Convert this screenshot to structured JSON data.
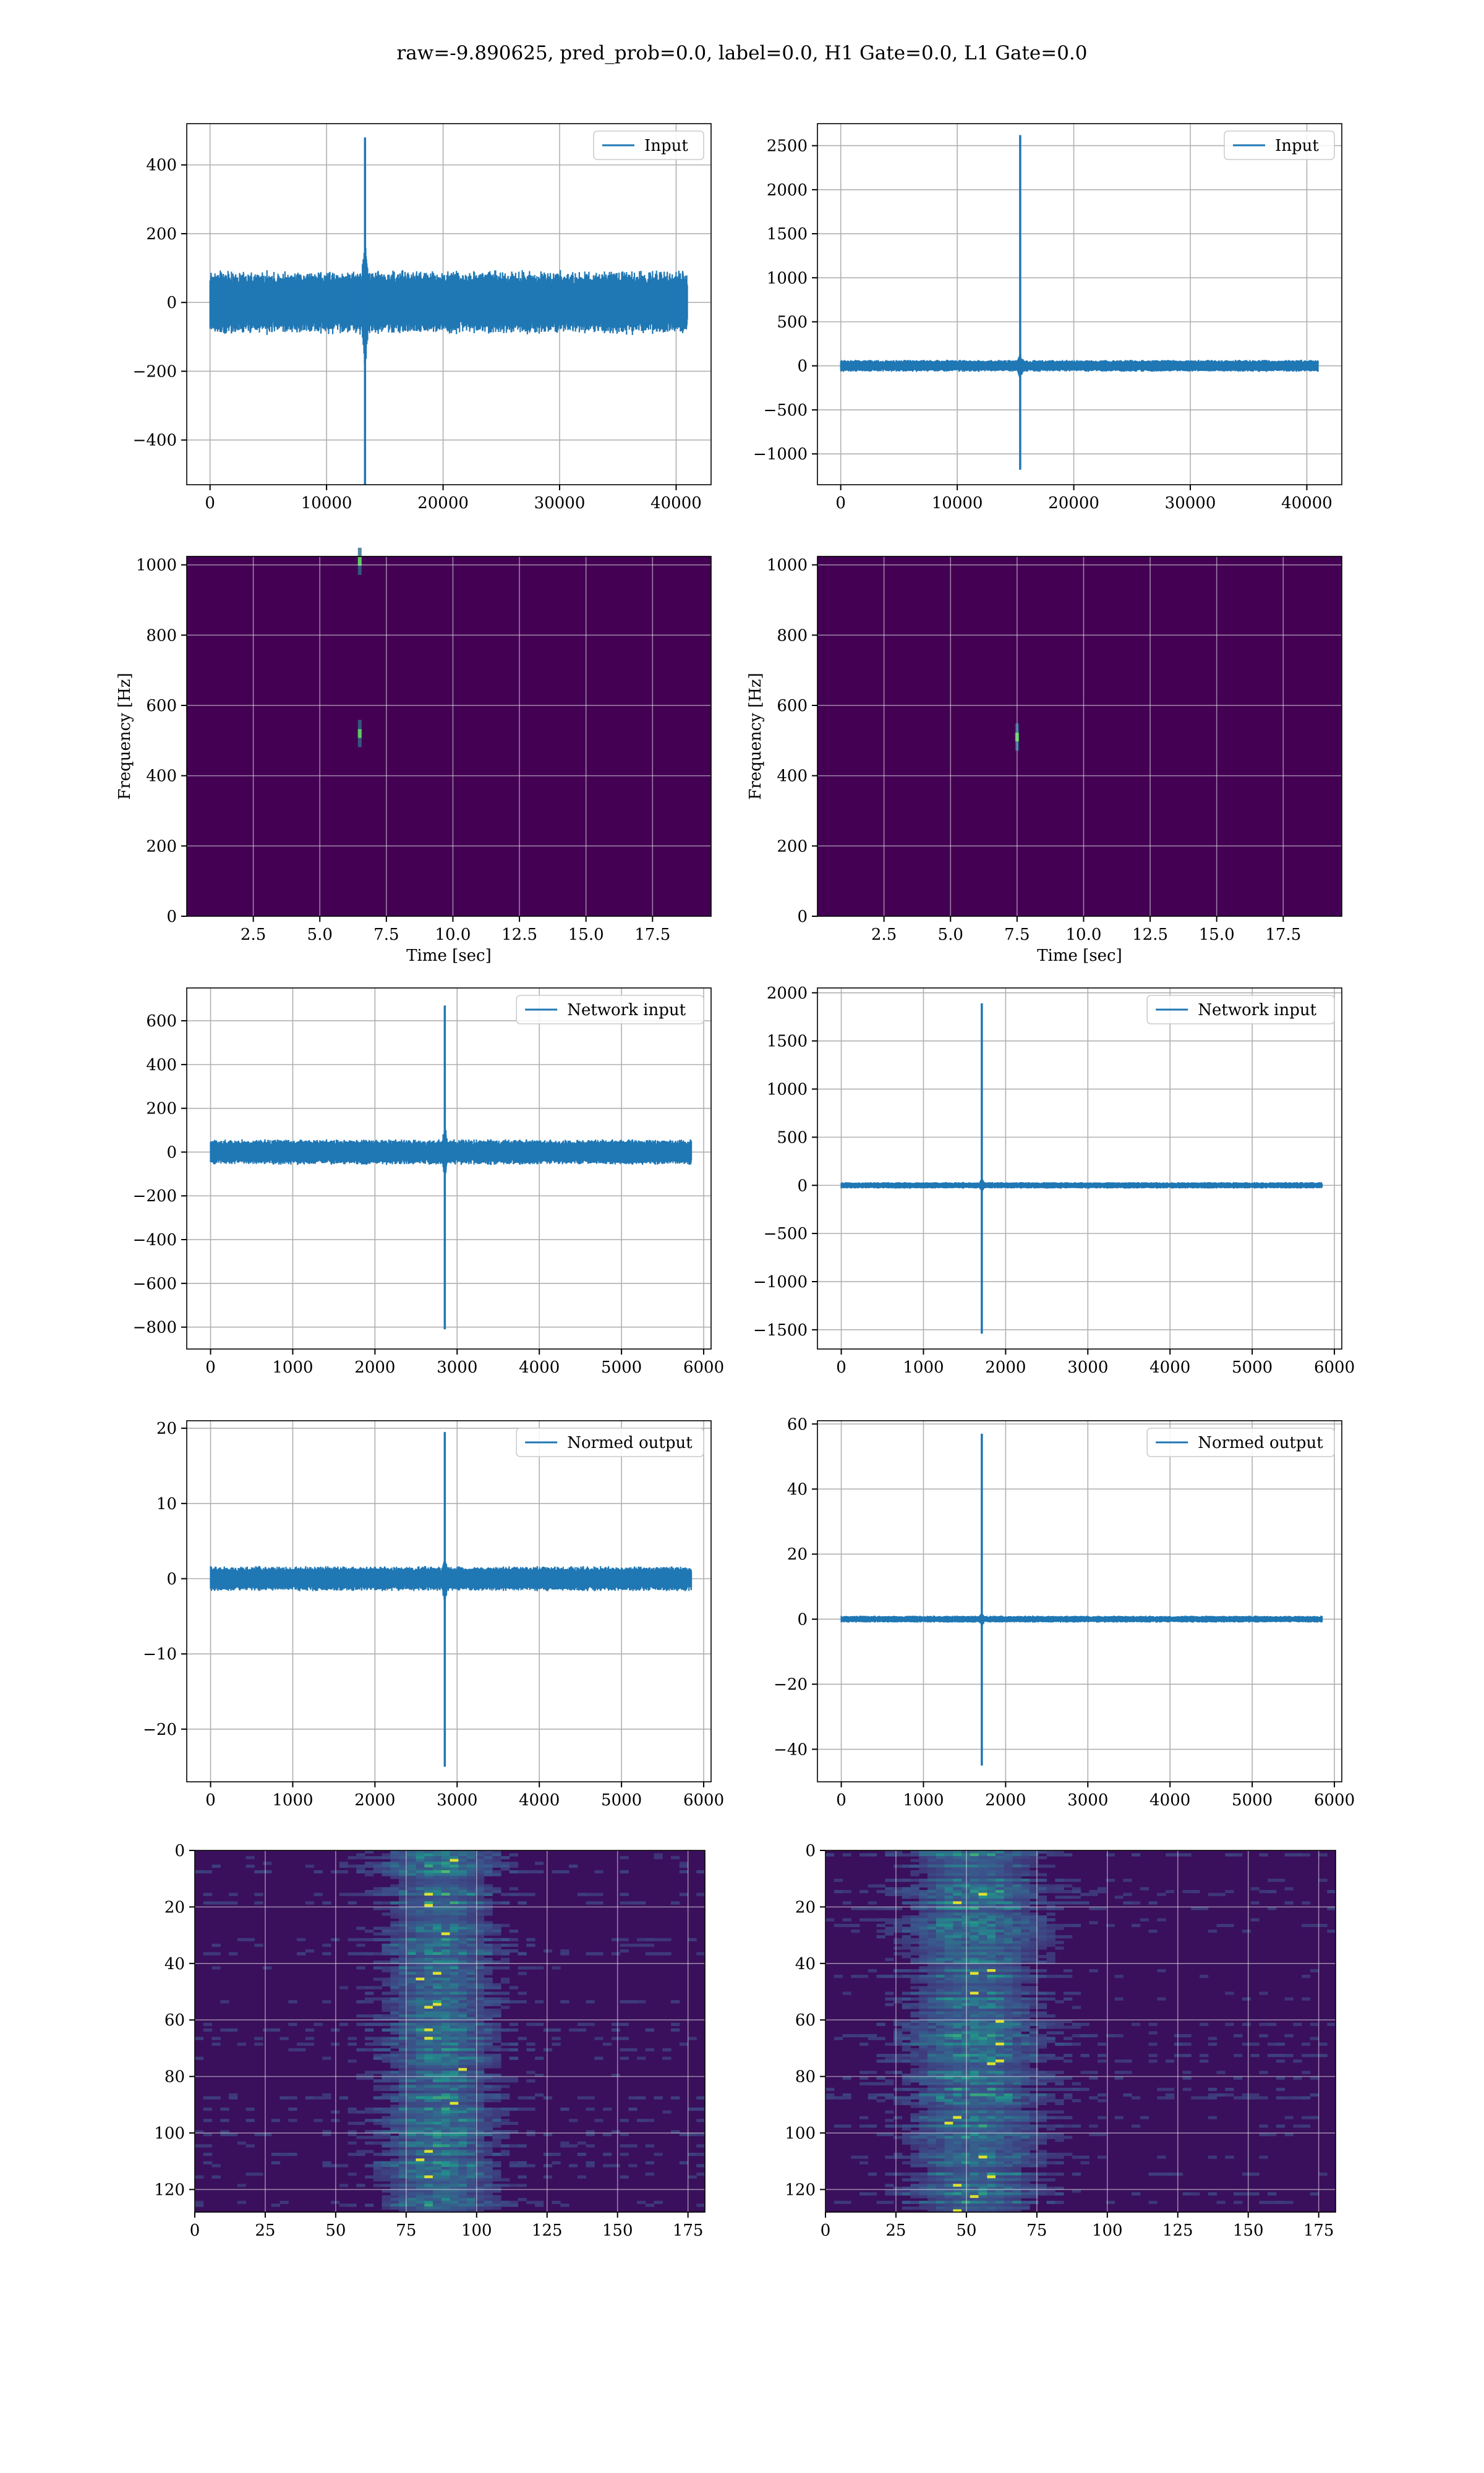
{
  "figure": {
    "suptitle": "raw=-9.890625, pred_prob=0.0, label=0.0, H1 Gate=0.0, L1 Gate=0.0"
  },
  "colors": {
    "signal": "#1f77b4",
    "grid": "#b0b0b0",
    "viridis_low": "#440154",
    "viridis_mid": "#21918c",
    "viridis_high": "#fde725"
  },
  "chart_data": [
    {
      "id": "input-h1",
      "type": "line",
      "legend": "Input",
      "xlim": [
        -2000,
        43000
      ],
      "ylim": [
        -530,
        520
      ],
      "xticks": [
        0,
        10000,
        20000,
        30000,
        40000
      ],
      "yticks": [
        -400,
        -200,
        0,
        200,
        400
      ],
      "x_range": [
        0,
        40960
      ],
      "noise_band": 95,
      "spike_x": 13300,
      "spike_max": 480,
      "spike_min": -530,
      "spike_width": 300,
      "legend_loc": "upper right",
      "grid": true
    },
    {
      "id": "input-l1",
      "type": "line",
      "legend": "Input",
      "xlim": [
        -2000,
        43000
      ],
      "ylim": [
        -1350,
        2750
      ],
      "xticks": [
        0,
        10000,
        20000,
        30000,
        40000
      ],
      "yticks": [
        -1000,
        -500,
        0,
        500,
        1000,
        1500,
        2000,
        2500
      ],
      "x_range": [
        0,
        40960
      ],
      "noise_band": 70,
      "spike_x": 15400,
      "spike_max": 2620,
      "spike_min": -1180,
      "spike_width": 300,
      "legend_loc": "upper right",
      "grid": true
    },
    {
      "id": "spectrogram-h1",
      "type": "heatmap",
      "xlabel": "Time [sec]",
      "ylabel": "Frequency [Hz]",
      "xlim": [
        0,
        19.7
      ],
      "ylim": [
        0,
        1024
      ],
      "xticks": [
        2.5,
        5.0,
        7.5,
        10.0,
        12.5,
        15.0,
        17.5
      ],
      "xticklabels": [
        "2.5",
        "5.0",
        "7.5",
        "10.0",
        "12.5",
        "15.0",
        "17.5"
      ],
      "yticks": [
        0,
        200,
        400,
        600,
        800,
        1000
      ],
      "hotspots": [
        {
          "t": 6.5,
          "f": 1010
        },
        {
          "t": 6.5,
          "f": 520
        }
      ],
      "grid": true
    },
    {
      "id": "spectrogram-l1",
      "type": "heatmap",
      "xlabel": "Time [sec]",
      "ylabel": "Frequency [Hz]",
      "xlim": [
        0,
        19.7
      ],
      "ylim": [
        0,
        1024
      ],
      "xticks": [
        2.5,
        5.0,
        7.5,
        10.0,
        12.5,
        15.0,
        17.5
      ],
      "xticklabels": [
        "2.5",
        "5.0",
        "7.5",
        "10.0",
        "12.5",
        "15.0",
        "17.5"
      ],
      "yticks": [
        0,
        200,
        400,
        600,
        800,
        1000
      ],
      "hotspots": [
        {
          "t": 7.5,
          "f": 510
        }
      ],
      "grid": true
    },
    {
      "id": "network-input-h1",
      "type": "line",
      "legend": "Network input",
      "xlim": [
        -290,
        6090
      ],
      "ylim": [
        -900,
        750
      ],
      "xticks": [
        0,
        1000,
        2000,
        3000,
        4000,
        5000,
        6000
      ],
      "yticks": [
        -800,
        -600,
        -400,
        -200,
        0,
        200,
        400,
        600
      ],
      "x_range": [
        0,
        5850
      ],
      "noise_band": 60,
      "spike_x": 2850,
      "spike_max": 670,
      "spike_min": -810,
      "spike_width": 30,
      "legend_loc": "upper right",
      "grid": true
    },
    {
      "id": "network-input-l1",
      "type": "line",
      "legend": "Network input",
      "xlim": [
        -290,
        6090
      ],
      "ylim": [
        -1700,
        2050
      ],
      "xticks": [
        0,
        1000,
        2000,
        3000,
        4000,
        5000,
        6000
      ],
      "yticks": [
        -1500,
        -1000,
        -500,
        0,
        500,
        1000,
        1500,
        2000
      ],
      "x_range": [
        0,
        5850
      ],
      "noise_band": 35,
      "spike_x": 1710,
      "spike_max": 1890,
      "spike_min": -1540,
      "spike_width": 30,
      "legend_loc": "upper right",
      "grid": true
    },
    {
      "id": "normed-output-h1",
      "type": "line",
      "legend": "Normed output",
      "xlim": [
        -290,
        6090
      ],
      "ylim": [
        -27,
        21
      ],
      "xticks": [
        0,
        1000,
        2000,
        3000,
        4000,
        5000,
        6000
      ],
      "yticks": [
        -20,
        -10,
        0,
        10,
        20
      ],
      "x_range": [
        0,
        5850
      ],
      "noise_band": 1.7,
      "spike_x": 2850,
      "spike_max": 19.5,
      "spike_min": -25,
      "spike_width": 30,
      "legend_loc": "upper right",
      "grid": true
    },
    {
      "id": "normed-output-l1",
      "type": "line",
      "legend": "Normed output",
      "xlim": [
        -290,
        6090
      ],
      "ylim": [
        -50,
        61
      ],
      "xticks": [
        0,
        1000,
        2000,
        3000,
        4000,
        5000,
        6000
      ],
      "yticks": [
        -40,
        -20,
        0,
        20,
        40,
        60
      ],
      "x_range": [
        0,
        5850
      ],
      "noise_band": 1.1,
      "spike_x": 1710,
      "spike_max": 57,
      "spike_min": -45,
      "spike_width": 30,
      "legend_loc": "upper right",
      "grid": true
    },
    {
      "id": "feature-map-h1",
      "type": "heatmap",
      "xlim": [
        0,
        181
      ],
      "ylim": [
        128,
        0
      ],
      "xticks": [
        0,
        25,
        50,
        75,
        100,
        125,
        150,
        175
      ],
      "yticks": [
        0,
        20,
        40,
        60,
        80,
        100,
        120
      ],
      "band_center": 87,
      "band_width": 22,
      "grid": true
    },
    {
      "id": "feature-map-l1",
      "type": "heatmap",
      "xlim": [
        0,
        181
      ],
      "ylim": [
        128,
        0
      ],
      "xticks": [
        0,
        25,
        50,
        75,
        100,
        125,
        150,
        175
      ],
      "yticks": [
        0,
        20,
        40,
        60,
        80,
        100,
        120
      ],
      "band_center": 53,
      "band_width": 26,
      "grid": true
    }
  ]
}
